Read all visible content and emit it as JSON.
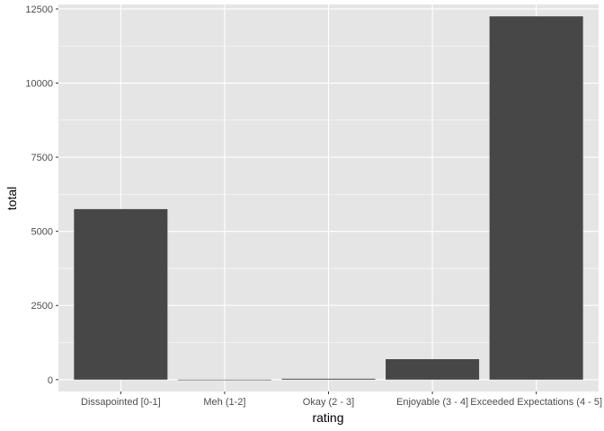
{
  "chart_data": {
    "type": "bar",
    "categories": [
      "Dissapointed [0-1]",
      "Meh (1-2]",
      "Okay (2 - 3]",
      "Enjoyable (3 - 4]",
      "Exceeded Expectations (4 - 5]"
    ],
    "values": [
      5750,
      0,
      30,
      690,
      12250
    ],
    "xlabel": "rating",
    "ylabel": "total",
    "ylim": [
      -400,
      12650
    ],
    "yticks": [
      0,
      2500,
      5000,
      7500,
      10000,
      12500
    ],
    "grid": true,
    "colors": {
      "panel": "#e5e5e5",
      "grid_major": "#ffffff",
      "bar": "#474747",
      "tick_text": "#4d4d4d",
      "tick_mark": "#333333"
    }
  }
}
